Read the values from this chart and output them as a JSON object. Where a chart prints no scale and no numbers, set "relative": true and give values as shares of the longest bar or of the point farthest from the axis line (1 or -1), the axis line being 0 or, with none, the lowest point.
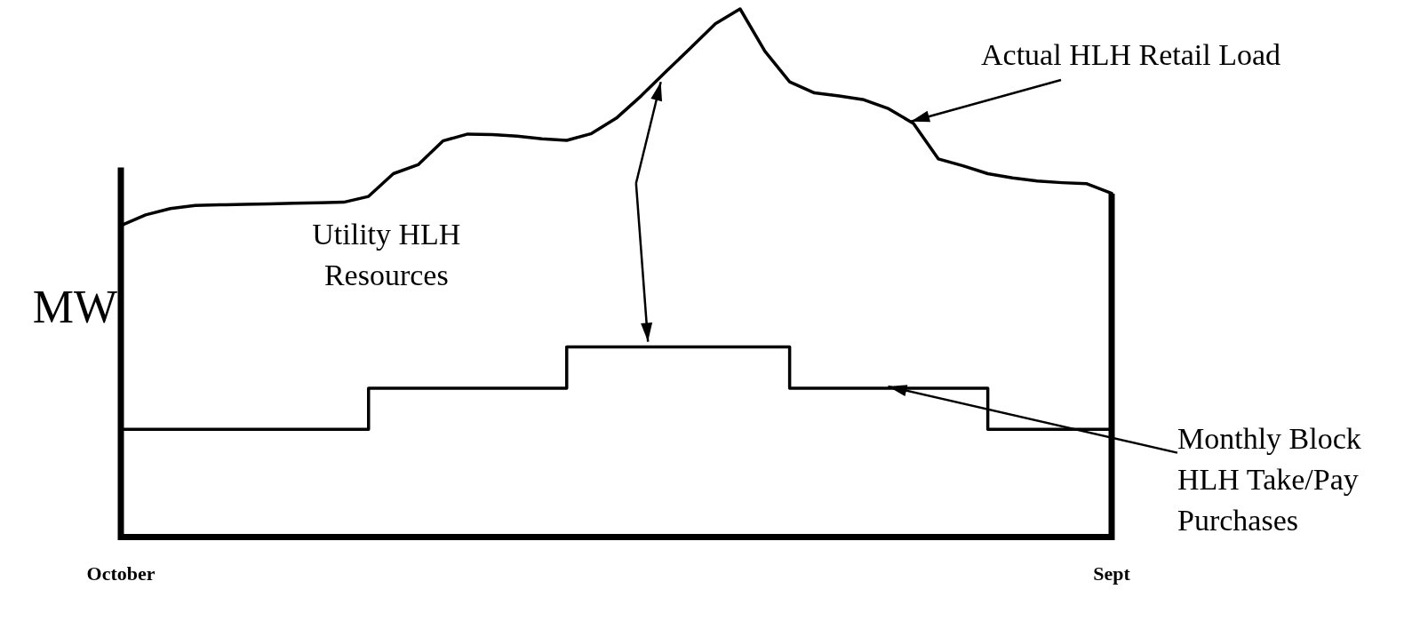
{
  "chart_data": {
    "type": "line",
    "relative": true,
    "ylabel": "MW",
    "legend": false,
    "grid": false,
    "marker": "none",
    "line_style": "solid",
    "categories": [
      "October",
      null,
      null,
      null,
      null,
      null,
      null,
      null,
      null,
      null,
      null,
      null,
      null,
      null,
      null,
      null,
      null,
      null,
      null,
      null,
      null,
      null,
      null,
      null,
      null,
      null,
      null,
      null,
      null,
      null,
      null,
      null,
      null,
      null,
      null,
      null,
      null,
      null,
      null,
      null,
      "Sept"
    ],
    "series": [
      {
        "color": "#000000",
        "values": [
          0.59,
          0.61,
          0.622,
          0.628,
          0.629,
          0.63,
          0.631,
          0.632,
          0.633,
          0.634,
          0.645,
          0.688,
          0.705,
          0.75,
          0.763,
          0.762,
          0.759,
          0.754,
          0.751,
          0.764,
          0.793,
          0.835,
          0.881,
          0.926,
          0.972,
          1.0,
          0.92,
          0.862,
          0.841,
          0.835,
          0.828,
          0.811,
          0.783,
          0.716,
          0.703,
          0.688,
          0.68,
          0.674,
          0.671,
          0.669,
          0.651
        ]
      },
      {
        "type": "step",
        "color": "#000000",
        "values": [
          0.204,
          0.204,
          0.204,
          0.204,
          0.204,
          0.204,
          0.204,
          0.204,
          0.204,
          0.204,
          0.282,
          0.282,
          0.282,
          0.282,
          0.282,
          0.282,
          0.282,
          0.282,
          0.36,
          0.36,
          0.36,
          0.36,
          0.36,
          0.36,
          0.36,
          0.36,
          0.36,
          0.282,
          0.282,
          0.282,
          0.282,
          0.282,
          0.282,
          0.282,
          0.282,
          0.204,
          0.204,
          0.204,
          0.204,
          0.204,
          0.204
        ]
      }
    ],
    "annotations": [
      "Actual HLH Retail Load",
      "Utility HLH Resources",
      "Monthly Block HLH Take/Pay Purchases"
    ]
  }
}
